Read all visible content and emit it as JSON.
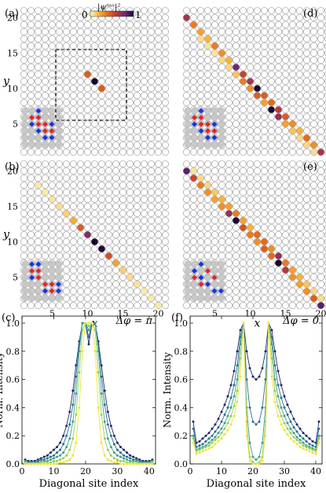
{
  "colorbar": {
    "label": "|ψⁿˢˢ|²",
    "min": "0",
    "max": "1",
    "stops": [
      "#fff6c6",
      "#f7b33a",
      "#e66a1a",
      "#b83a3a",
      "#6e2a78",
      "#1b0630"
    ]
  },
  "lattice_panels": [
    {
      "label": "(a)",
      "xlabel": "",
      "ylabel": "y",
      "y_ticks": [
        5,
        10,
        15,
        20
      ],
      "x_ticks": [],
      "dashed_box": {
        "x": [
          5,
          15
        ],
        "y": [
          6,
          16
        ]
      },
      "inset_red": [
        [
          2,
          5
        ],
        [
          3,
          4
        ],
        [
          3,
          5
        ],
        [
          4,
          4
        ],
        [
          4,
          3
        ],
        [
          5,
          3
        ]
      ],
      "inset_blue": [
        [
          2,
          4
        ],
        [
          3,
          3
        ],
        [
          4,
          2
        ],
        [
          5,
          2
        ],
        [
          5,
          4
        ],
        [
          3,
          6
        ]
      ],
      "sites": [
        [
          10,
          12,
          0.45
        ],
        [
          11,
          11,
          1.0
        ],
        [
          12,
          10,
          0.45
        ]
      ]
    },
    {
      "label": "(b)",
      "xlabel": "x",
      "ylabel": "y",
      "y_ticks": [
        5,
        10,
        15,
        20
      ],
      "x_ticks": [
        5,
        10,
        15,
        20
      ],
      "dashed_box": null,
      "inset_red": [
        [
          2,
          5
        ],
        [
          3,
          5
        ],
        [
          4,
          3
        ],
        [
          5,
          3
        ],
        [
          5,
          2
        ],
        [
          3,
          4
        ]
      ],
      "inset_blue": [
        [
          2,
          4
        ],
        [
          2,
          6
        ],
        [
          3,
          6
        ],
        [
          4,
          2
        ],
        [
          6,
          2
        ],
        [
          6,
          3
        ]
      ],
      "sites": [
        [
          3,
          18,
          0.04
        ],
        [
          4,
          17,
          0.04
        ],
        [
          5,
          16,
          0.06
        ],
        [
          6,
          15,
          0.08
        ],
        [
          7,
          14,
          0.12
        ],
        [
          8,
          13,
          0.22
        ],
        [
          9,
          12,
          0.45
        ],
        [
          10,
          11,
          0.75
        ],
        [
          11,
          10,
          1.0
        ],
        [
          12,
          9,
          0.98
        ],
        [
          13,
          8,
          0.5
        ],
        [
          14,
          7,
          0.25
        ],
        [
          15,
          6,
          0.12
        ],
        [
          16,
          5,
          0.08
        ],
        [
          17,
          4,
          0.06
        ],
        [
          18,
          3,
          0.04
        ],
        [
          19,
          2,
          0.04
        ],
        [
          20,
          1,
          0.04
        ]
      ]
    },
    {
      "label": "(d)",
      "xlabel": "",
      "ylabel": "",
      "y_ticks": [],
      "x_ticks": [],
      "dashed_box": null,
      "inset_red": [
        [
          2,
          5
        ],
        [
          3,
          4
        ],
        [
          3,
          5
        ],
        [
          4,
          4
        ],
        [
          4,
          3
        ],
        [
          5,
          3
        ]
      ],
      "inset_blue": [
        [
          2,
          4
        ],
        [
          3,
          3
        ],
        [
          4,
          2
        ],
        [
          5,
          2
        ],
        [
          5,
          4
        ],
        [
          3,
          6
        ]
      ],
      "sites": [
        [
          1,
          20,
          0.65
        ],
        [
          2,
          19,
          0.35
        ],
        [
          3,
          18,
          0.25
        ],
        [
          4,
          17,
          0.2
        ],
        [
          5,
          16,
          0.35
        ],
        [
          6,
          15,
          0.3
        ],
        [
          7,
          14,
          0.2
        ],
        [
          8,
          13,
          0.8
        ],
        [
          9,
          12,
          0.55
        ],
        [
          10,
          11,
          0.65
        ],
        [
          11,
          10,
          1.0
        ],
        [
          12,
          9,
          0.45
        ],
        [
          13,
          8,
          0.4
        ],
        [
          14,
          7,
          0.6
        ],
        [
          15,
          6,
          0.45
        ],
        [
          16,
          5,
          0.3
        ],
        [
          17,
          4,
          0.2
        ],
        [
          18,
          3,
          0.4
        ],
        [
          19,
          2,
          0.3
        ],
        [
          20,
          1,
          0.65
        ],
        [
          7,
          13,
          0.1
        ],
        [
          8,
          12,
          0.15
        ],
        [
          9,
          11,
          0.35
        ],
        [
          10,
          10,
          0.3
        ],
        [
          11,
          9,
          0.45
        ],
        [
          12,
          8,
          0.25
        ],
        [
          13,
          7,
          1.0
        ],
        [
          14,
          6,
          0.7
        ],
        [
          15,
          5,
          0.25
        ],
        [
          16,
          4,
          0.15
        ],
        [
          17,
          3,
          0.1
        ],
        [
          6,
          14,
          0.1
        ],
        [
          5,
          15,
          0.06
        ],
        [
          4,
          16,
          0.06
        ],
        [
          3,
          17,
          0.08
        ],
        [
          18,
          2,
          0.1
        ],
        [
          19,
          1,
          0.08
        ]
      ]
    },
    {
      "label": "(e)",
      "xlabel": "x",
      "ylabel": "",
      "y_ticks": [],
      "x_ticks": [
        5,
        10,
        15,
        20
      ],
      "dashed_box": null,
      "inset_red": [
        [
          2,
          4
        ],
        [
          3,
          3
        ],
        [
          4,
          5
        ],
        [
          5,
          4
        ]
      ],
      "inset_blue": [
        [
          2,
          5
        ],
        [
          3,
          6
        ],
        [
          4,
          3
        ],
        [
          5,
          2
        ],
        [
          6,
          2
        ],
        [
          3,
          4
        ]
      ],
      "sites": [
        [
          1,
          20,
          0.85
        ],
        [
          2,
          19,
          0.55
        ],
        [
          3,
          18,
          0.35
        ],
        [
          4,
          17,
          0.3
        ],
        [
          5,
          16,
          0.25
        ],
        [
          6,
          15,
          0.3
        ],
        [
          7,
          14,
          0.7
        ],
        [
          8,
          13,
          1.0
        ],
        [
          9,
          12,
          0.5
        ],
        [
          10,
          11,
          0.35
        ],
        [
          11,
          10,
          0.3
        ],
        [
          12,
          9,
          0.45
        ],
        [
          13,
          8,
          0.4
        ],
        [
          14,
          7,
          1.0
        ],
        [
          15,
          6,
          0.6
        ],
        [
          16,
          5,
          0.3
        ],
        [
          17,
          4,
          0.25
        ],
        [
          18,
          3,
          0.3
        ],
        [
          19,
          2,
          0.45
        ],
        [
          20,
          1,
          0.85
        ],
        [
          2,
          20,
          0.06
        ],
        [
          3,
          19,
          0.08
        ],
        [
          4,
          18,
          0.1
        ],
        [
          5,
          17,
          0.14
        ],
        [
          6,
          16,
          0.2
        ],
        [
          7,
          15,
          0.25
        ],
        [
          8,
          14,
          0.35
        ],
        [
          9,
          13,
          0.25
        ],
        [
          10,
          12,
          0.2
        ],
        [
          11,
          11,
          0.4
        ],
        [
          12,
          10,
          0.4
        ],
        [
          13,
          9,
          0.3
        ],
        [
          14,
          8,
          0.7
        ],
        [
          15,
          7,
          0.35
        ],
        [
          16,
          6,
          0.25
        ],
        [
          17,
          5,
          0.2
        ],
        [
          18,
          4,
          0.15
        ],
        [
          19,
          3,
          0.1
        ],
        [
          20,
          2,
          0.08
        ],
        [
          21,
          1,
          0.06
        ]
      ]
    }
  ],
  "chart_data": [
    {
      "type": "line",
      "label": "(c)",
      "annotation": "Δφ = π",
      "xlabel": "Diagonal site index",
      "ylabel": "Norm. Intensity",
      "xlim": [
        0,
        42
      ],
      "ylim": [
        0,
        1.05
      ],
      "x_ticks": [
        0,
        10,
        20,
        30,
        40
      ],
      "y_ticks": [
        0.0,
        0.2,
        0.4,
        0.6,
        0.8,
        1.0
      ],
      "colors": [
        "#1f2a6e",
        "#2b6f8f",
        "#3fa08a",
        "#8fcf5b",
        "#f2e13a"
      ],
      "x": [
        1,
        2,
        3,
        4,
        5,
        6,
        7,
        8,
        9,
        10,
        11,
        12,
        13,
        14,
        15,
        16,
        17,
        18,
        19,
        20,
        21,
        22,
        23,
        24,
        25,
        26,
        27,
        28,
        29,
        30,
        31,
        32,
        33,
        34,
        35,
        36,
        37,
        38,
        39,
        40,
        41
      ],
      "series": [
        {
          "values": [
            0.03,
            0.02,
            0.02,
            0.02,
            0.03,
            0.04,
            0.05,
            0.06,
            0.08,
            0.1,
            0.12,
            0.15,
            0.2,
            0.27,
            0.37,
            0.52,
            0.7,
            0.87,
            1.0,
            1.0,
            0.85,
            1.0,
            1.0,
            0.87,
            0.7,
            0.52,
            0.37,
            0.27,
            0.2,
            0.15,
            0.12,
            0.1,
            0.08,
            0.06,
            0.05,
            0.04,
            0.03,
            0.02,
            0.02,
            0.02,
            0.03
          ]
        },
        {
          "values": [
            0.02,
            0.01,
            0.01,
            0.01,
            0.02,
            0.03,
            0.03,
            0.04,
            0.05,
            0.06,
            0.08,
            0.1,
            0.14,
            0.2,
            0.28,
            0.42,
            0.62,
            0.85,
            1.0,
            1.0,
            0.9,
            1.0,
            1.0,
            0.85,
            0.62,
            0.42,
            0.28,
            0.2,
            0.14,
            0.1,
            0.08,
            0.06,
            0.05,
            0.04,
            0.03,
            0.03,
            0.02,
            0.01,
            0.01,
            0.01,
            0.02
          ]
        },
        {
          "values": [
            0.02,
            0.01,
            0.01,
            0.01,
            0.01,
            0.02,
            0.02,
            0.02,
            0.03,
            0.04,
            0.05,
            0.06,
            0.08,
            0.12,
            0.18,
            0.3,
            0.5,
            0.8,
            1.0,
            1.0,
            0.95,
            1.0,
            1.0,
            0.8,
            0.5,
            0.3,
            0.18,
            0.12,
            0.08,
            0.06,
            0.05,
            0.04,
            0.03,
            0.02,
            0.02,
            0.02,
            0.01,
            0.01,
            0.01,
            0.01,
            0.02
          ]
        },
        {
          "values": [
            0.01,
            0.0,
            0.0,
            0.0,
            0.0,
            0.01,
            0.01,
            0.01,
            0.01,
            0.02,
            0.02,
            0.03,
            0.04,
            0.06,
            0.1,
            0.18,
            0.35,
            0.65,
            0.95,
            1.0,
            0.98,
            1.0,
            0.95,
            0.65,
            0.35,
            0.18,
            0.1,
            0.06,
            0.04,
            0.03,
            0.02,
            0.02,
            0.01,
            0.01,
            0.01,
            0.01,
            0.0,
            0.0,
            0.0,
            0.0,
            0.01
          ]
        },
        {
          "values": [
            0.0,
            0.0,
            0.0,
            0.0,
            0.0,
            0.0,
            0.0,
            0.0,
            0.0,
            0.0,
            0.0,
            0.01,
            0.01,
            0.02,
            0.03,
            0.06,
            0.15,
            0.4,
            0.8,
            1.0,
            1.0,
            1.0,
            0.8,
            0.4,
            0.15,
            0.06,
            0.03,
            0.02,
            0.01,
            0.01,
            0.0,
            0.0,
            0.0,
            0.0,
            0.0,
            0.0,
            0.0,
            0.0,
            0.0,
            0.0,
            0.0
          ]
        }
      ]
    },
    {
      "type": "line",
      "label": "(f)",
      "annotation": "Δφ = 0",
      "xlabel": "Diagonal site index",
      "ylabel": "Norm. Intensity",
      "xlim": [
        0,
        42
      ],
      "ylim": [
        0,
        1.05
      ],
      "x_ticks": [
        0,
        10,
        20,
        30,
        40
      ],
      "y_ticks": [
        0.0,
        0.2,
        0.4,
        0.6,
        0.8,
        1.0
      ],
      "colors": [
        "#1f2a6e",
        "#2b6f8f",
        "#3fa08a",
        "#8fcf5b",
        "#f2e13a"
      ],
      "x": [
        1,
        2,
        3,
        4,
        5,
        6,
        7,
        8,
        9,
        10,
        11,
        12,
        13,
        14,
        15,
        16,
        17,
        18,
        19,
        20,
        21,
        22,
        23,
        24,
        25,
        26,
        27,
        28,
        29,
        30,
        31,
        32,
        33,
        34,
        35,
        36,
        37,
        38,
        39,
        40,
        41
      ],
      "series": [
        {
          "values": [
            0.3,
            0.15,
            0.16,
            0.18,
            0.2,
            0.22,
            0.25,
            0.28,
            0.32,
            0.37,
            0.42,
            0.48,
            0.56,
            0.66,
            0.8,
            0.95,
            1.0,
            0.8,
            0.68,
            0.62,
            0.6,
            0.62,
            0.68,
            0.8,
            1.0,
            0.95,
            0.8,
            0.66,
            0.56,
            0.48,
            0.42,
            0.37,
            0.32,
            0.28,
            0.25,
            0.22,
            0.2,
            0.18,
            0.16,
            0.15,
            0.3
          ]
        },
        {
          "values": [
            0.25,
            0.12,
            0.13,
            0.14,
            0.16,
            0.18,
            0.2,
            0.23,
            0.26,
            0.3,
            0.35,
            0.4,
            0.47,
            0.56,
            0.7,
            0.9,
            1.0,
            0.6,
            0.4,
            0.3,
            0.28,
            0.3,
            0.4,
            0.6,
            1.0,
            0.9,
            0.7,
            0.56,
            0.47,
            0.4,
            0.35,
            0.3,
            0.26,
            0.23,
            0.2,
            0.18,
            0.16,
            0.14,
            0.13,
            0.12,
            0.25
          ]
        },
        {
          "values": [
            0.2,
            0.1,
            0.11,
            0.12,
            0.13,
            0.15,
            0.17,
            0.19,
            0.22,
            0.25,
            0.29,
            0.34,
            0.4,
            0.48,
            0.6,
            0.85,
            1.0,
            0.4,
            0.15,
            0.05,
            0.03,
            0.05,
            0.15,
            0.4,
            1.0,
            0.85,
            0.6,
            0.48,
            0.4,
            0.34,
            0.29,
            0.25,
            0.22,
            0.19,
            0.17,
            0.15,
            0.13,
            0.12,
            0.11,
            0.1,
            0.2
          ]
        },
        {
          "values": [
            0.18,
            0.09,
            0.1,
            0.11,
            0.12,
            0.13,
            0.15,
            0.17,
            0.19,
            0.22,
            0.25,
            0.29,
            0.34,
            0.41,
            0.52,
            0.75,
            1.0,
            0.3,
            0.05,
            0.01,
            0.0,
            0.01,
            0.05,
            0.3,
            1.0,
            0.75,
            0.52,
            0.41,
            0.34,
            0.29,
            0.25,
            0.22,
            0.19,
            0.17,
            0.15,
            0.13,
            0.12,
            0.11,
            0.1,
            0.09,
            0.18
          ]
        },
        {
          "values": [
            0.15,
            0.07,
            0.08,
            0.09,
            0.1,
            0.11,
            0.12,
            0.14,
            0.16,
            0.18,
            0.21,
            0.24,
            0.28,
            0.34,
            0.44,
            0.62,
            1.0,
            0.2,
            0.02,
            0.0,
            0.0,
            0.0,
            0.02,
            0.2,
            1.0,
            0.62,
            0.44,
            0.34,
            0.28,
            0.24,
            0.21,
            0.18,
            0.16,
            0.14,
            0.12,
            0.11,
            0.1,
            0.09,
            0.08,
            0.07,
            0.15
          ]
        }
      ]
    }
  ]
}
